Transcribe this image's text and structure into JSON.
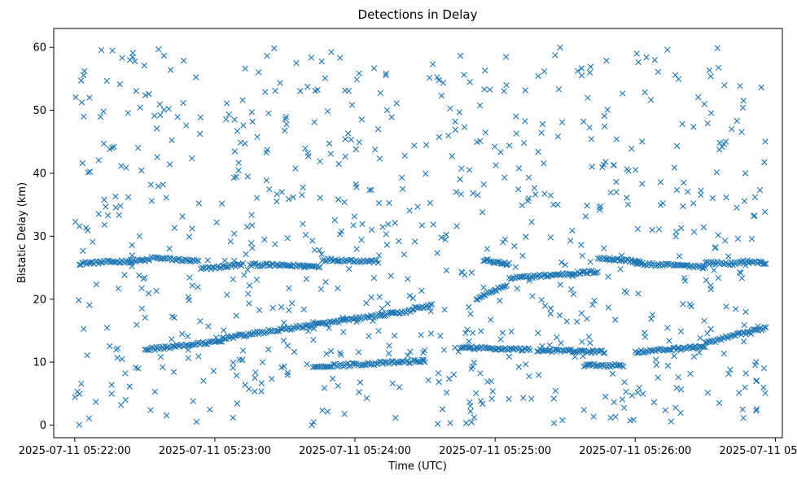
{
  "chart_data": {
    "type": "scatter",
    "title": "Detections in Delay",
    "xlabel": "Time (UTC)",
    "ylabel": "Bistatic Delay (km)",
    "marker": "x",
    "color": "#1f77b4",
    "grid": false,
    "legend": "none",
    "xlim": [
      "2025-07-11 05:21:51",
      "2025-07-11 05:27:03"
    ],
    "ylim": [
      -2,
      63
    ],
    "x_ticks": [
      "2025-07-11 05:22:00",
      "2025-07-11 05:23:00",
      "2025-07-11 05:24:00",
      "2025-07-11 05:25:00",
      "2025-07-11 05:26:00",
      "2025-07-11 05:27:00"
    ],
    "y_ticks": [
      0,
      10,
      20,
      30,
      40,
      50,
      60
    ],
    "data_start": "2025-07-11 05:22:00",
    "data_end": "2025-07-11 05:26:56",
    "tracks": [
      {
        "start": "2025-07-11 05:22:02",
        "end": "2025-07-11 05:22:32",
        "delay_start": 25.7,
        "delay_end": 26.2
      },
      {
        "start": "2025-07-11 05:22:33",
        "end": "2025-07-11 05:22:53",
        "delay_start": 26.6,
        "delay_end": 26.0
      },
      {
        "start": "2025-07-11 05:22:54",
        "end": "2025-07-11 05:23:12",
        "delay_start": 24.8,
        "delay_end": 25.5
      },
      {
        "start": "2025-07-11 05:23:15",
        "end": "2025-07-11 05:23:45",
        "delay_start": 25.5,
        "delay_end": 25.2
      },
      {
        "start": "2025-07-11 05:23:46",
        "end": "2025-07-11 05:24:10",
        "delay_start": 26.3,
        "delay_end": 26.0
      },
      {
        "start": "2025-07-11 05:24:55",
        "end": "2025-07-11 05:25:06",
        "delay_start": 26.2,
        "delay_end": 25.5
      },
      {
        "start": "2025-07-11 05:25:06",
        "end": "2025-07-11 05:25:44",
        "delay_start": 23.3,
        "delay_end": 24.4
      },
      {
        "start": "2025-07-11 05:25:44",
        "end": "2025-07-11 05:26:02",
        "delay_start": 26.5,
        "delay_end": 26.0
      },
      {
        "start": "2025-07-11 05:26:00",
        "end": "2025-07-11 05:26:30",
        "delay_start": 25.6,
        "delay_end": 25.2
      },
      {
        "start": "2025-07-11 05:26:30",
        "end": "2025-07-11 05:26:45",
        "delay_start": 25.8,
        "delay_end": 25.6
      },
      {
        "start": "2025-07-11 05:26:45",
        "end": "2025-07-11 05:26:56",
        "delay_start": 26.1,
        "delay_end": 25.7
      },
      {
        "start": "2025-07-11 05:22:30",
        "end": "2025-07-11 05:23:03",
        "delay_start": 12.0,
        "delay_end": 13.3
      },
      {
        "start": "2025-07-11 05:23:03",
        "end": "2025-07-11 05:24:25",
        "delay_start": 13.8,
        "delay_end": 18.2
      },
      {
        "start": "2025-07-11 05:24:25",
        "end": "2025-07-11 05:24:33",
        "delay_start": 18.5,
        "delay_end": 19.0
      },
      {
        "start": "2025-07-11 05:24:45",
        "end": "2025-07-11 05:25:15",
        "delay_start": 12.3,
        "delay_end": 12.0
      },
      {
        "start": "2025-07-11 05:25:18",
        "end": "2025-07-11 05:25:47",
        "delay_start": 11.9,
        "delay_end": 11.6
      },
      {
        "start": "2025-07-11 05:25:38",
        "end": "2025-07-11 05:25:55",
        "delay_start": 9.5,
        "delay_end": 9.5
      },
      {
        "start": "2025-07-11 05:26:00",
        "end": "2025-07-11 05:26:30",
        "delay_start": 11.6,
        "delay_end": 12.5
      },
      {
        "start": "2025-07-11 05:26:30",
        "end": "2025-07-11 05:26:56",
        "delay_start": 13.0,
        "delay_end": 15.5
      },
      {
        "start": "2025-07-11 05:23:42",
        "end": "2025-07-11 05:24:30",
        "delay_start": 9.3,
        "delay_end": 10.2
      },
      {
        "start": "2025-07-11 05:24:52",
        "end": "2025-07-11 05:25:00",
        "delay_start": 20.0,
        "delay_end": 21.5
      },
      {
        "start": "2025-07-11 05:25:00",
        "end": "2025-07-11 05:25:05",
        "delay_start": 21.5,
        "delay_end": 22.0
      }
    ]
  }
}
